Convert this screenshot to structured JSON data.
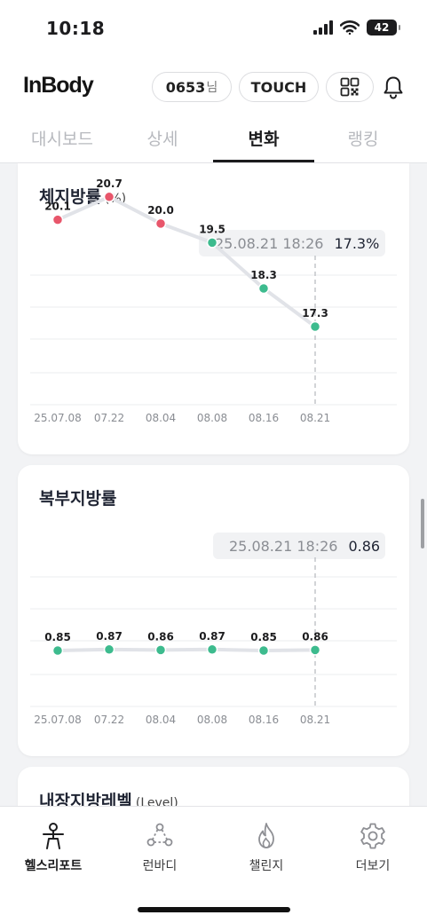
{
  "status_bar": {
    "time": "10:18",
    "battery": "42"
  },
  "header": {
    "logo": "InBody",
    "user_id": "0653",
    "user_suffix": "님",
    "touch_label": "TOUCH",
    "icons": [
      "qr-code-icon",
      "bell-icon"
    ]
  },
  "tabs": [
    {
      "label": "대시보드",
      "active": false
    },
    {
      "label": "상세",
      "active": false
    },
    {
      "label": "변화",
      "active": true
    },
    {
      "label": "랭킹",
      "active": false
    }
  ],
  "cards": [
    {
      "title": "체지방률",
      "unit": "(%)",
      "tooltip": {
        "date": "25.08.21 18:26",
        "value": "17.3%"
      }
    },
    {
      "title": "복부지방률",
      "unit": "",
      "tooltip": {
        "date": "25.08.21 18:26",
        "value": "0.86"
      }
    },
    {
      "title": "내장지방레벨",
      "unit": "(Level)"
    }
  ],
  "chart_data": [
    {
      "type": "line",
      "title": "체지방률",
      "ylabel": "(%)",
      "x": [
        "25.07.08",
        "07.22",
        "08.04",
        "08.08",
        "08.16",
        "08.21"
      ],
      "values": [
        20.1,
        20.7,
        20.0,
        19.5,
        18.3,
        17.3
      ],
      "value_labels": [
        "20.1",
        "20.7",
        "20.0",
        "19.5",
        "18.3",
        "17.3"
      ],
      "point_status": [
        "over",
        "over",
        "over",
        "normal",
        "normal",
        "normal"
      ],
      "colors": {
        "over": "#e8566b",
        "normal": "#3dbb8e",
        "line": "#e1e3e8"
      },
      "grid": true,
      "selected_index": 5
    },
    {
      "type": "line",
      "title": "복부지방률",
      "x": [
        "25.07.08",
        "07.22",
        "08.04",
        "08.08",
        "08.16",
        "08.21"
      ],
      "values": [
        0.85,
        0.87,
        0.86,
        0.87,
        0.85,
        0.86
      ],
      "value_labels": [
        "0.85",
        "0.87",
        "0.86",
        "0.87",
        "0.85",
        "0.86"
      ],
      "point_status": [
        "normal",
        "normal",
        "normal",
        "normal",
        "normal",
        "normal"
      ],
      "colors": {
        "over": "#e8566b",
        "normal": "#3dbb8e",
        "line": "#e1e3e8"
      },
      "grid": true,
      "selected_index": 5
    }
  ],
  "bottom_nav": [
    {
      "label": "헬스리포트",
      "icon": "person-report-icon",
      "active": true
    },
    {
      "label": "런바디",
      "icon": "run-body-icon",
      "active": false
    },
    {
      "label": "챌린지",
      "icon": "flame-icon",
      "active": false
    },
    {
      "label": "더보기",
      "icon": "gear-icon",
      "active": false
    }
  ]
}
